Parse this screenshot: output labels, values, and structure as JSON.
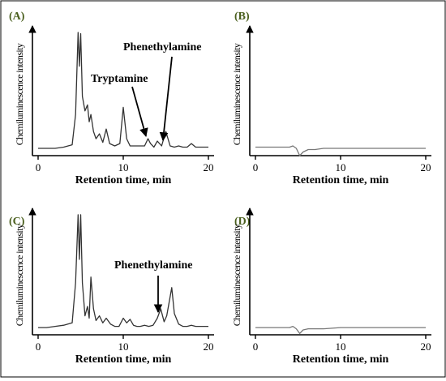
{
  "chart_data": [
    {
      "panel": "(A)",
      "type": "line",
      "xlabel": "Retention time, min",
      "ylabel": "Chemiluminescence intensity",
      "xlim": [
        0,
        20
      ],
      "xticks": [
        "0",
        "10",
        "20"
      ],
      "series": [
        {
          "color": "#333333",
          "x": [
            0.0,
            1.0,
            2.0,
            3.0,
            4.0,
            4.4,
            4.7,
            4.85,
            5.0,
            5.2,
            5.5,
            5.8,
            6.0,
            6.2,
            6.5,
            6.8,
            7.2,
            7.6,
            8.0,
            8.4,
            9.0,
            9.6,
            10.0,
            10.4,
            10.8,
            11.2,
            11.6,
            12.0,
            12.5,
            12.9,
            13.2,
            13.6,
            14.0,
            14.5,
            15.0,
            15.5,
            16.0,
            16.5,
            17.0,
            17.5,
            18.0,
            18.5,
            19.0,
            19.5,
            20.0
          ],
          "y": [
            2,
            2,
            2,
            3,
            5,
            30,
            98,
            70,
            97,
            45,
            33,
            38,
            24,
            30,
            16,
            10,
            14,
            7,
            18,
            6,
            4,
            6,
            36,
            10,
            4,
            4,
            4,
            4,
            4,
            10,
            6,
            3,
            8,
            4,
            16,
            4,
            3,
            4,
            3,
            3,
            6,
            3,
            3,
            3,
            3
          ]
        }
      ],
      "annotations": [
        {
          "text": "Tryptamine",
          "x": 12.8,
          "y": 10
        },
        {
          "text": "Phenethylamine",
          "x": 14.5,
          "y": 8
        }
      ]
    },
    {
      "panel": "(B)",
      "type": "line",
      "xlabel": "Retention time, min",
      "ylabel": "Chemiluminescence intensity",
      "xlim": [
        0,
        20
      ],
      "xticks": [
        "0",
        "10",
        "20"
      ],
      "series": [
        {
          "color": "#777777",
          "x": [
            0,
            2,
            4,
            4.4,
            4.8,
            5.2,
            5.6,
            6.2,
            7,
            8,
            10,
            12,
            14,
            16,
            18,
            20
          ],
          "y": [
            3,
            3,
            3,
            4,
            2,
            -4,
            -1,
            1,
            1,
            2,
            2,
            2,
            2,
            2,
            2,
            2
          ]
        }
      ]
    },
    {
      "panel": "(C)",
      "type": "line",
      "xlabel": "Retention time, min",
      "ylabel": "Chemiluminescence intensity",
      "xlim": [
        0,
        20
      ],
      "xticks": [
        "0",
        "10",
        "20"
      ],
      "series": [
        {
          "color": "#333333",
          "x": [
            0.0,
            1.0,
            2.0,
            3.0,
            4.0,
            4.4,
            4.7,
            4.85,
            5.0,
            5.2,
            5.5,
            5.8,
            6.0,
            6.2,
            6.5,
            6.8,
            7.2,
            7.6,
            8.0,
            8.5,
            9.0,
            9.5,
            10.0,
            10.4,
            10.8,
            11.2,
            11.6,
            12.0,
            12.5,
            13.0,
            13.5,
            14.0,
            14.4,
            14.8,
            15.1,
            15.4,
            15.7,
            16.0,
            16.5,
            17.0,
            17.5,
            18.0,
            18.5,
            19.0,
            19.5,
            20.0
          ],
          "y": [
            2,
            2,
            3,
            4,
            6,
            40,
            98,
            60,
            98,
            40,
            12,
            20,
            10,
            45,
            18,
            8,
            12,
            6,
            10,
            5,
            3,
            3,
            10,
            6,
            9,
            4,
            3,
            3,
            4,
            3,
            4,
            10,
            18,
            7,
            12,
            24,
            36,
            14,
            5,
            3,
            3,
            4,
            3,
            3,
            3,
            3
          ]
        }
      ],
      "annotations": [
        {
          "text": "Phenethylamine",
          "x": 14.2,
          "y": 12
        }
      ]
    },
    {
      "panel": "(D)",
      "type": "line",
      "xlabel": "Retention time, min",
      "ylabel": "Chemiluminescence intensity",
      "xlim": [
        0,
        20
      ],
      "xticks": [
        "0",
        "10",
        "20"
      ],
      "series": [
        {
          "color": "#777777",
          "x": [
            0,
            2,
            4,
            4.4,
            4.8,
            5.2,
            5.6,
            6.2,
            7,
            8,
            10,
            12,
            14,
            16,
            18,
            20
          ],
          "y": [
            2,
            2,
            2,
            3,
            1,
            -3,
            0,
            1,
            1,
            1,
            2,
            2,
            2,
            2,
            2,
            2
          ]
        }
      ]
    }
  ]
}
